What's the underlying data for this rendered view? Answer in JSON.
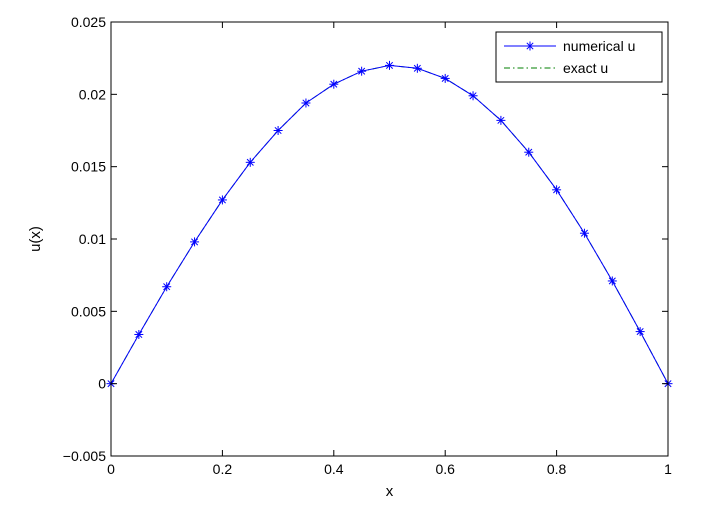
{
  "chart_data": {
    "type": "line",
    "title": "",
    "xlabel": "x",
    "ylabel": "u(x)",
    "xlim": [
      0,
      1
    ],
    "ylim": [
      -0.005,
      0.025
    ],
    "grid": false,
    "legend_position": "top-right",
    "x_ticks": [
      {
        "value": 0,
        "label": "0"
      },
      {
        "value": 0.2,
        "label": "0.2"
      },
      {
        "value": 0.4,
        "label": "0.4"
      },
      {
        "value": 0.6,
        "label": "0.6"
      },
      {
        "value": 0.8,
        "label": "0.8"
      },
      {
        "value": 1,
        "label": "1"
      }
    ],
    "y_ticks": [
      {
        "value": -0.005,
        "label": "−0.005"
      },
      {
        "value": 0,
        "label": "0"
      },
      {
        "value": 0.005,
        "label": "0.005"
      },
      {
        "value": 0.01,
        "label": "0.01"
      },
      {
        "value": 0.015,
        "label": "0.015"
      },
      {
        "value": 0.02,
        "label": "0.02"
      },
      {
        "value": 0.025,
        "label": "0.025"
      }
    ],
    "x": [
      0,
      0.05,
      0.1,
      0.15,
      0.2,
      0.25,
      0.3,
      0.35,
      0.4,
      0.45,
      0.5,
      0.55,
      0.6,
      0.65,
      0.7,
      0.75,
      0.8,
      0.85,
      0.9,
      0.95,
      1
    ],
    "series": [
      {
        "name": "numerical u",
        "color": "#0000ff",
        "line_style": "solid",
        "marker": "asterisk",
        "values": [
          0,
          0.0034,
          0.0067,
          0.0098,
          0.0127,
          0.0153,
          0.0175,
          0.0194,
          0.0207,
          0.0216,
          0.022,
          0.0218,
          0.0211,
          0.0199,
          0.0182,
          0.016,
          0.0134,
          0.0104,
          0.0071,
          0.0036,
          0
        ]
      },
      {
        "name": "exact u",
        "color": "#007f00",
        "line_style": "dash-dot",
        "marker": "none",
        "values": [
          0,
          0.0034,
          0.0067,
          0.0098,
          0.0127,
          0.0153,
          0.0175,
          0.0194,
          0.0207,
          0.0216,
          0.022,
          0.0218,
          0.0211,
          0.0199,
          0.0182,
          0.016,
          0.0134,
          0.0104,
          0.0071,
          0.0036,
          0
        ]
      }
    ]
  }
}
